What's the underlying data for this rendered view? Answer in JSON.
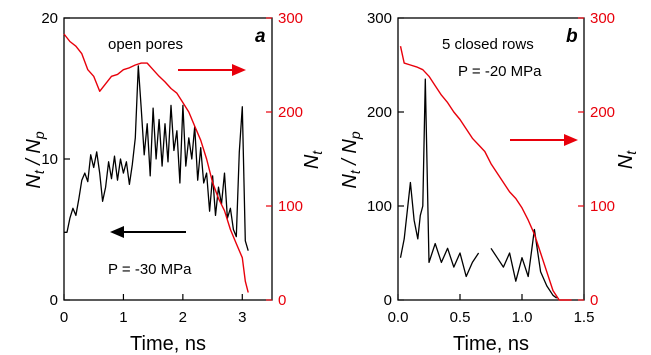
{
  "chart_data": [
    {
      "type": "line",
      "panel_label": "a",
      "xlabel": "Time, ns",
      "ylabel_left": "Nt / Np",
      "ylabel_right": "Nt",
      "xlim": [
        0,
        3.5
      ],
      "ylim_left": [
        0,
        20
      ],
      "ylim_right": [
        0,
        300
      ],
      "x_ticks": [
        0,
        1,
        2,
        3
      ],
      "y_ticks_left": [
        0,
        10,
        20
      ],
      "y_ticks_right": [
        0,
        100,
        200,
        300
      ],
      "annotations": [
        "open pores",
        "P = -30 MPa"
      ],
      "colors": {
        "left": "#000000",
        "right": "#e8000b"
      },
      "series": [
        {
          "axis": "left",
          "color": "#000000",
          "x": [
            0.0,
            0.05,
            0.1,
            0.15,
            0.2,
            0.25,
            0.3,
            0.35,
            0.4,
            0.45,
            0.5,
            0.55,
            0.6,
            0.65,
            0.7,
            0.75,
            0.8,
            0.85,
            0.9,
            0.95,
            1.0,
            1.05,
            1.1,
            1.15,
            1.2,
            1.25,
            1.3,
            1.35,
            1.4,
            1.45,
            1.5,
            1.55,
            1.6,
            1.65,
            1.7,
            1.75,
            1.8,
            1.85,
            1.9,
            1.95,
            2.0,
            2.05,
            2.1,
            2.15,
            2.2,
            2.25,
            2.3,
            2.35,
            2.4,
            2.45,
            2.5,
            2.55,
            2.6,
            2.65,
            2.7,
            2.75,
            2.8,
            2.85,
            2.9,
            2.95,
            3.0,
            3.05,
            3.1
          ],
          "y": [
            4.8,
            4.8,
            5.8,
            6.5,
            6.0,
            7.2,
            8.5,
            9.0,
            8.4,
            10.3,
            9.4,
            10.5,
            9.0,
            7.0,
            8.0,
            9.8,
            8.6,
            10.2,
            8.5,
            10.0,
            9.0,
            9.8,
            8.2,
            9.6,
            11.5,
            16.6,
            13.5,
            10.3,
            12.5,
            8.8,
            13.6,
            10.0,
            12.8,
            9.5,
            12.5,
            9.8,
            13.8,
            10.6,
            12.0,
            8.3,
            13.8,
            9.5,
            11.5,
            10.0,
            12.3,
            8.5,
            10.8,
            8.3,
            9.0,
            6.3,
            8.8,
            6.0,
            8.0,
            6.8,
            9.0,
            5.8,
            6.5,
            5.0,
            4.5,
            10.5,
            13.7,
            4.2,
            3.5
          ]
        },
        {
          "axis": "right",
          "color": "#e8000b",
          "x": [
            0.0,
            0.1,
            0.2,
            0.3,
            0.4,
            0.5,
            0.55,
            0.6,
            0.7,
            0.8,
            0.9,
            1.0,
            1.1,
            1.2,
            1.3,
            1.4,
            1.5,
            1.6,
            1.7,
            1.8,
            1.9,
            2.0,
            2.1,
            2.2,
            2.3,
            2.4,
            2.5,
            2.6,
            2.7,
            2.8,
            2.9,
            3.0,
            3.05,
            3.1
          ],
          "y": [
            283,
            275,
            270,
            262,
            245,
            238,
            230,
            222,
            230,
            238,
            240,
            245,
            247,
            250,
            252,
            252,
            245,
            238,
            232,
            225,
            220,
            210,
            200,
            185,
            170,
            150,
            125,
            108,
            95,
            75,
            60,
            45,
            20,
            8
          ]
        }
      ]
    },
    {
      "type": "line",
      "panel_label": "b",
      "xlabel": "Time, ns",
      "ylabel_left": "Nt / Np",
      "ylabel_right": "Nt",
      "xlim": [
        0,
        1.5
      ],
      "ylim_left": [
        0,
        300
      ],
      "ylim_right": [
        0,
        300
      ],
      "x_ticks": [
        0.0,
        0.5,
        1.0,
        1.5
      ],
      "y_ticks_left": [
        0,
        100,
        200,
        300
      ],
      "y_ticks_right": [
        0,
        100,
        200,
        300
      ],
      "annotations": [
        "5 closed rows",
        "P = -20 MPa"
      ],
      "colors": {
        "left": "#000000",
        "right": "#e8000b"
      },
      "series": [
        {
          "axis": "left",
          "color": "#000000",
          "x": [
            0.02,
            0.05,
            0.1,
            0.13,
            0.16,
            0.18,
            0.2,
            0.22,
            0.25,
            0.3,
            0.35,
            0.4,
            0.45,
            0.5,
            0.55,
            0.6,
            0.65
          ],
          "y": [
            45,
            65,
            125,
            85,
            65,
            90,
            100,
            235,
            40,
            60,
            40,
            55,
            35,
            50,
            25,
            40,
            50
          ]
        },
        {
          "axis": "left",
          "color": "#000000",
          "x": [
            0.75,
            0.8,
            0.85,
            0.9,
            0.95,
            1.0,
            1.05,
            1.1,
            1.15,
            1.2,
            1.25,
            1.28
          ],
          "y": [
            55,
            45,
            35,
            50,
            20,
            45,
            25,
            75,
            30,
            15,
            5,
            2
          ]
        },
        {
          "axis": "right",
          "color": "#e8000b",
          "x": [
            0.02,
            0.05,
            0.1,
            0.15,
            0.2,
            0.25,
            0.3,
            0.35,
            0.4,
            0.45,
            0.5,
            0.55,
            0.6,
            0.65,
            0.7,
            0.75,
            0.8,
            0.85,
            0.9,
            0.95,
            1.0,
            1.05,
            1.1,
            1.15,
            1.2,
            1.25,
            1.3,
            1.35,
            1.4
          ],
          "y": [
            270,
            252,
            250,
            248,
            245,
            238,
            228,
            218,
            210,
            200,
            192,
            182,
            172,
            165,
            158,
            145,
            135,
            125,
            115,
            108,
            98,
            85,
            70,
            50,
            30,
            10,
            0,
            0,
            0
          ]
        }
      ]
    }
  ]
}
